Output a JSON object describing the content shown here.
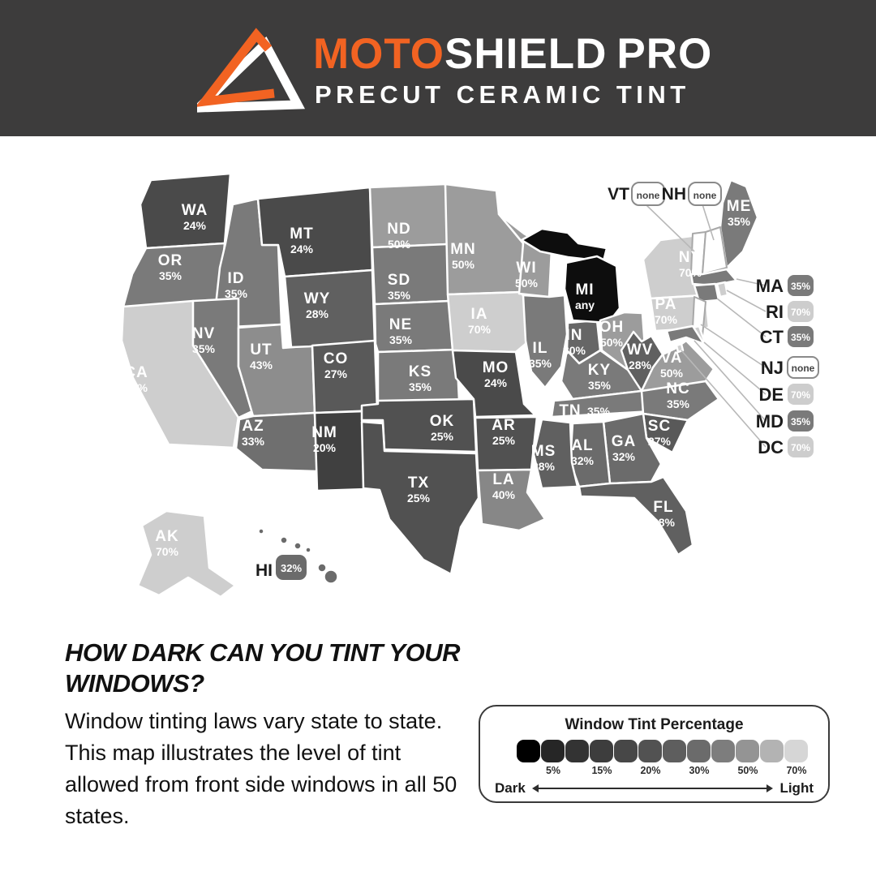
{
  "header": {
    "brand_moto": "MOTO",
    "brand_shield": "SHIELD",
    "brand_pro": "PRO",
    "tagline": "PRECUT CERAMIC TINT",
    "bg_color": "#3d3c3c",
    "accent_color": "#f26322"
  },
  "map": {
    "states": [
      {
        "abbr": "WA",
        "value": "24%",
        "fill": "#4a4a4a"
      },
      {
        "abbr": "OR",
        "value": "35%",
        "fill": "#7a7a7a"
      },
      {
        "abbr": "CA",
        "value": "70%",
        "fill": "#cecece"
      },
      {
        "abbr": "ID",
        "value": "35%",
        "fill": "#7a7a7a"
      },
      {
        "abbr": "NV",
        "value": "35%",
        "fill": "#7a7a7a"
      },
      {
        "abbr": "UT",
        "value": "43%",
        "fill": "#8d8d8d"
      },
      {
        "abbr": "AZ",
        "value": "33%",
        "fill": "#6f6f6f"
      },
      {
        "abbr": "MT",
        "value": "24%",
        "fill": "#4a4a4a"
      },
      {
        "abbr": "WY",
        "value": "28%",
        "fill": "#606060"
      },
      {
        "abbr": "CO",
        "value": "27%",
        "fill": "#595959"
      },
      {
        "abbr": "NM",
        "value": "20%",
        "fill": "#404040"
      },
      {
        "abbr": "ND",
        "value": "50%",
        "fill": "#9c9c9c"
      },
      {
        "abbr": "SD",
        "value": "35%",
        "fill": "#7a7a7a"
      },
      {
        "abbr": "NE",
        "value": "35%",
        "fill": "#7a7a7a"
      },
      {
        "abbr": "KS",
        "value": "35%",
        "fill": "#7a7a7a"
      },
      {
        "abbr": "OK",
        "value": "25%",
        "fill": "#515151"
      },
      {
        "abbr": "TX",
        "value": "25%",
        "fill": "#515151"
      },
      {
        "abbr": "MN",
        "value": "50%",
        "fill": "#9c9c9c"
      },
      {
        "abbr": "IA",
        "value": "70%",
        "fill": "#cecece"
      },
      {
        "abbr": "MO",
        "value": "24%",
        "fill": "#4a4a4a"
      },
      {
        "abbr": "AR",
        "value": "25%",
        "fill": "#515151"
      },
      {
        "abbr": "LA",
        "value": "40%",
        "fill": "#878787"
      },
      {
        "abbr": "WI",
        "value": "50%",
        "fill": "#9c9c9c"
      },
      {
        "abbr": "IL",
        "value": "35%",
        "fill": "#7a7a7a"
      },
      {
        "abbr": "IN",
        "value": "30%",
        "fill": "#666666"
      },
      {
        "abbr": "MI",
        "value": "any",
        "fill": "#0d0d0d"
      },
      {
        "abbr": "OH",
        "value": "50%",
        "fill": "#9c9c9c"
      },
      {
        "abbr": "KY",
        "value": "35%",
        "fill": "#7a7a7a"
      },
      {
        "abbr": "TN",
        "value": "35%",
        "fill": "#7a7a7a",
        "inline": true
      },
      {
        "abbr": "WV",
        "value": "28%",
        "fill": "#606060"
      },
      {
        "abbr": "VA",
        "value": "50%",
        "fill": "#9c9c9c"
      },
      {
        "abbr": "NC",
        "value": "35%",
        "fill": "#7a7a7a"
      },
      {
        "abbr": "SC",
        "value": "27%",
        "fill": "#595959"
      },
      {
        "abbr": "GA",
        "value": "32%",
        "fill": "#6b6b6b"
      },
      {
        "abbr": "AL",
        "value": "32%",
        "fill": "#6b6b6b"
      },
      {
        "abbr": "MS",
        "value": "28%",
        "fill": "#606060"
      },
      {
        "abbr": "FL",
        "value": "28%",
        "fill": "#606060"
      },
      {
        "abbr": "NY",
        "value": "70%",
        "fill": "#cecece"
      },
      {
        "abbr": "PA",
        "value": "70%",
        "fill": "#cecece"
      },
      {
        "abbr": "ME",
        "value": "35%",
        "fill": "#7a7a7a"
      },
      {
        "abbr": "AK",
        "value": "70%",
        "fill": "#cecece"
      },
      {
        "abbr": "VT",
        "value": "none",
        "fill": "#ffffff",
        "no_label": true
      },
      {
        "abbr": "NH",
        "value": "none",
        "fill": "#ffffff",
        "no_label": true
      },
      {
        "abbr": "MA",
        "value": "35%",
        "fill": "#7a7a7a",
        "no_label": true
      },
      {
        "abbr": "CT",
        "value": "35%",
        "fill": "#7a7a7a",
        "no_label": true
      },
      {
        "abbr": "RI",
        "value": "70%",
        "fill": "#cecece",
        "no_label": true
      },
      {
        "abbr": "NJ",
        "value": "none",
        "fill": "#ffffff",
        "no_label": true
      },
      {
        "abbr": "DE",
        "value": "70%",
        "fill": "#cecece",
        "no_label": true
      },
      {
        "abbr": "MD",
        "value": "35%",
        "fill": "#7a7a7a",
        "no_label": true
      },
      {
        "abbr": "DC",
        "value": "70%",
        "fill": "#cecece",
        "no_label": true
      },
      {
        "abbr": "HI",
        "value": "32%",
        "fill": "#6b6b6b",
        "no_label": true
      }
    ],
    "top_callouts": [
      {
        "abbr": "VT",
        "value": "none"
      },
      {
        "abbr": "NH",
        "value": "none"
      }
    ],
    "right_callouts": [
      {
        "abbr": "MA",
        "value": "35%"
      },
      {
        "abbr": "RI",
        "value": "70%"
      },
      {
        "abbr": "CT",
        "value": "35%"
      },
      {
        "abbr": "NJ",
        "value": "none"
      },
      {
        "abbr": "DE",
        "value": "70%"
      },
      {
        "abbr": "MD",
        "value": "35%"
      },
      {
        "abbr": "DC",
        "value": "70%"
      }
    ],
    "hi_callout": {
      "abbr": "HI",
      "value": "32%"
    },
    "shade_colors": {
      "any": "#0d0d0d",
      "20%": "#404040",
      "24%": "#4a4a4a",
      "25%": "#515151",
      "27%": "#595959",
      "28%": "#606060",
      "30%": "#666666",
      "32%": "#6b6b6b",
      "33%": "#6f6f6f",
      "35%": "#7a7a7a",
      "40%": "#878787",
      "43%": "#8d8d8d",
      "50%": "#9c9c9c",
      "70%": "#cecece",
      "none": "#ffffff"
    }
  },
  "section": {
    "heading_line1": "HOW DARK CAN YOU TINT YOUR",
    "heading_line2": "WINDOWS?",
    "paragraph": "Window tinting laws vary state to state. This map illustrates the level of tint allowed from front side windows in all 50 states."
  },
  "legend": {
    "title": "Window Tint Percentage",
    "swatches": [
      {
        "color": "#000000",
        "label": ""
      },
      {
        "color": "#262626",
        "label": "5%"
      },
      {
        "color": "#333333",
        "label": ""
      },
      {
        "color": "#3d3d3d",
        "label": "15%"
      },
      {
        "color": "#474747",
        "label": ""
      },
      {
        "color": "#525252",
        "label": "20%"
      },
      {
        "color": "#5e5e5e",
        "label": ""
      },
      {
        "color": "#6b6b6b",
        "label": "30%"
      },
      {
        "color": "#7d7d7d",
        "label": ""
      },
      {
        "color": "#949494",
        "label": "50%"
      },
      {
        "color": "#b3b3b3",
        "label": ""
      },
      {
        "color": "#d6d6d6",
        "label": "70%"
      }
    ],
    "dark_label": "Dark",
    "light_label": "Light"
  }
}
